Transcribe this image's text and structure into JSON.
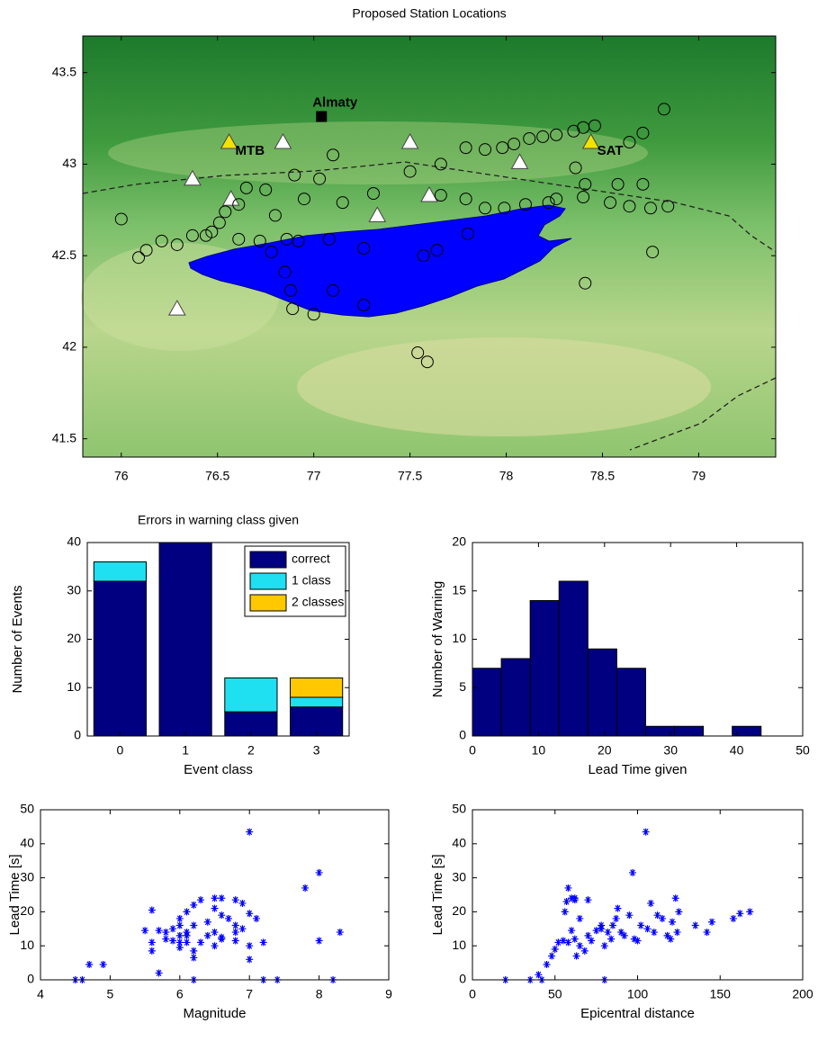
{
  "chart_data": [
    {
      "type": "map",
      "title": "Proposed Station Locations",
      "xlim": [
        75.8,
        79.4
      ],
      "xticks": [
        76,
        76.5,
        77,
        77.5,
        78,
        78.5,
        79
      ],
      "ylim": [
        41.4,
        43.7
      ],
      "yticks": [
        41.5,
        42,
        42.5,
        43,
        43.5
      ],
      "markers": [
        {
          "shape": "triangle",
          "color": "#ffffff",
          "x": [
            76.84,
            76.37,
            76.57,
            77.33,
            77.5,
            77.6,
            78.07,
            76.29
          ],
          "y": [
            43.12,
            42.92,
            42.81,
            42.72,
            43.12,
            42.83,
            43.01,
            42.21
          ]
        },
        {
          "shape": "triangle",
          "color": "#f2e200",
          "x": [
            76.56,
            78.44
          ],
          "y": [
            43.12,
            43.12
          ],
          "labels": [
            "MTB",
            "SAT"
          ]
        },
        {
          "shape": "square",
          "color": "#000000",
          "x": [
            77.04
          ],
          "y": [
            43.26
          ],
          "labels": [
            "Almaty"
          ]
        },
        {
          "shape": "circle",
          "color": "#000000",
          "x": [
            76.0,
            76.09,
            76.13,
            76.21,
            76.29,
            76.37,
            76.44,
            76.47,
            76.51,
            76.54,
            76.61,
            76.65,
            76.75,
            76.8,
            76.9,
            76.95,
            77.03,
            77.1,
            76.61,
            76.72,
            76.78,
            76.86,
            76.92,
            77.08,
            76.85,
            76.88,
            76.89,
            77.0,
            77.1,
            77.26,
            77.26,
            77.57,
            77.64,
            77.8,
            77.54,
            77.59,
            77.66,
            77.79,
            77.89,
            77.98,
            78.04,
            78.12,
            78.19,
            78.26,
            78.35,
            78.4,
            78.46,
            78.64,
            78.71,
            78.82,
            78.36,
            78.41,
            78.58,
            78.71,
            77.5,
            77.66,
            77.79,
            77.89,
            77.99,
            78.1,
            78.22,
            78.26,
            78.4,
            78.54,
            78.64,
            78.75,
            78.84,
            78.76,
            78.41,
            77.31,
            77.15
          ],
          "y": [
            42.7,
            42.49,
            42.53,
            42.58,
            42.56,
            42.61,
            42.61,
            42.63,
            42.68,
            42.74,
            42.78,
            42.87,
            42.86,
            42.72,
            42.94,
            42.81,
            42.92,
            43.05,
            42.59,
            42.58,
            42.52,
            42.59,
            42.58,
            42.59,
            42.41,
            42.31,
            42.21,
            42.18,
            42.31,
            42.54,
            42.23,
            42.5,
            42.53,
            42.62,
            41.97,
            41.92,
            43.0,
            43.09,
            43.08,
            43.09,
            43.11,
            43.14,
            43.15,
            43.16,
            43.18,
            43.2,
            43.21,
            43.12,
            43.17,
            43.3,
            42.98,
            42.89,
            42.89,
            42.89,
            42.96,
            42.83,
            42.81,
            42.76,
            42.76,
            42.78,
            42.79,
            42.81,
            42.82,
            42.79,
            42.77,
            42.76,
            42.77,
            42.52,
            42.35,
            42.84,
            42.79
          ]
        }
      ]
    },
    {
      "type": "bar",
      "stacked": true,
      "title": "Errors in warning class given",
      "categories": [
        "0",
        "1",
        "2",
        "3"
      ],
      "series": [
        {
          "name": "correct",
          "color": "#000080",
          "values": [
            32,
            40,
            5,
            6
          ]
        },
        {
          "name": "1 class",
          "color": "#1ee0f0",
          "values": [
            4,
            0,
            7,
            2
          ]
        },
        {
          "name": "2 classes",
          "color": "#ffc800",
          "values": [
            0,
            0,
            0,
            4
          ]
        }
      ],
      "ylim": [
        0,
        40
      ],
      "yticks": [
        0,
        10,
        20,
        30,
        40
      ],
      "xlabel": "Event class",
      "ylabel": "Number of Events",
      "legend": "upper right"
    },
    {
      "type": "histogram",
      "color": "#000080",
      "bins": [
        0,
        4.37,
        8.74,
        13.11,
        17.48,
        21.85,
        26.22,
        30.59,
        34.96,
        39.33,
        43.7
      ],
      "counts": [
        7,
        8,
        14,
        16,
        9,
        7,
        1,
        1,
        0,
        1
      ],
      "xlim": [
        0,
        50
      ],
      "xticks": [
        0,
        10,
        20,
        30,
        40,
        50
      ],
      "ylim": [
        0,
        20
      ],
      "yticks": [
        0,
        5,
        10,
        15,
        20
      ],
      "xlabel": "Lead Time given",
      "ylabel": "Number of Warning"
    },
    {
      "type": "scatter",
      "color": "#0000ff",
      "x": [
        4.5,
        4.6,
        4.7,
        4.9,
        5.5,
        5.6,
        5.6,
        5.6,
        5.7,
        5.7,
        5.8,
        5.8,
        5.9,
        5.9,
        6.0,
        6.0,
        6.0,
        6.0,
        6.0,
        6.1,
        6.1,
        6.1,
        6.1,
        6.2,
        6.2,
        6.2,
        6.2,
        6.3,
        6.3,
        6.4,
        6.4,
        6.5,
        6.5,
        6.5,
        6.5,
        6.6,
        6.6,
        6.6,
        6.7,
        6.8,
        6.8,
        6.8,
        6.8,
        6.9,
        6.9,
        7.0,
        7.0,
        7.0,
        7.0,
        7.1,
        7.2,
        7.2,
        7.4,
        7.8,
        8.0,
        8.0,
        8.2,
        8.3,
        6.2,
        6.6
      ],
      "y": [
        0,
        0,
        4.5,
        4.5,
        14.5,
        20.5,
        11,
        8.5,
        14.5,
        2,
        14,
        12,
        11.5,
        15,
        18,
        16,
        13,
        11,
        9.5,
        20,
        13,
        11,
        14,
        22,
        16,
        8.5,
        6.5,
        23.5,
        11,
        17,
        13,
        24,
        21,
        14,
        10,
        24,
        19,
        12,
        18,
        23.5,
        16,
        14,
        11.5,
        22.5,
        15,
        43.5,
        19.5,
        10,
        6,
        18,
        11,
        0,
        0,
        27,
        31.5,
        11.5,
        0,
        14,
        0,
        12.5
      ],
      "xlim": [
        4,
        9
      ],
      "xticks": [
        4,
        5,
        6,
        7,
        8,
        9
      ],
      "ylim": [
        0,
        50
      ],
      "yticks": [
        0,
        10,
        20,
        30,
        40,
        50
      ],
      "xlabel": "Magnitude",
      "ylabel": "Lead Time [s]"
    },
    {
      "type": "scatter",
      "color": "#0000ff",
      "x": [
        20,
        35,
        40,
        42,
        45,
        48,
        50,
        52,
        55,
        56,
        57,
        58,
        58,
        60,
        60,
        62,
        62,
        63,
        65,
        68,
        70,
        70,
        72,
        75,
        78,
        78,
        80,
        80,
        82,
        84,
        85,
        87,
        88,
        90,
        92,
        95,
        97,
        98,
        100,
        102,
        105,
        106,
        108,
        110,
        112,
        115,
        118,
        120,
        121,
        123,
        124,
        125,
        135,
        142,
        145,
        158,
        162,
        168,
        62,
        65
      ],
      "y": [
        0,
        0,
        1.5,
        0,
        4.5,
        7,
        9,
        11,
        11.5,
        20,
        23,
        27,
        11,
        24,
        14.5,
        23.5,
        12,
        7,
        10,
        8.5,
        23.5,
        13,
        11.5,
        14.5,
        15,
        16,
        10,
        0,
        14,
        12,
        16,
        18,
        21,
        14,
        13,
        19,
        31.5,
        12,
        11.5,
        16,
        43.5,
        15,
        22.5,
        14,
        19,
        18,
        13,
        12,
        17,
        24,
        14,
        20,
        16,
        14,
        17,
        18,
        19.5,
        20,
        24,
        18
      ],
      "xlim": [
        0,
        200
      ],
      "xticks": [
        0,
        50,
        100,
        150,
        200
      ],
      "ylim": [
        0,
        50
      ],
      "yticks": [
        0,
        10,
        20,
        30,
        40,
        50
      ],
      "xlabel": "Epicentral distance",
      "ylabel": "Lead Time [s]"
    }
  ]
}
